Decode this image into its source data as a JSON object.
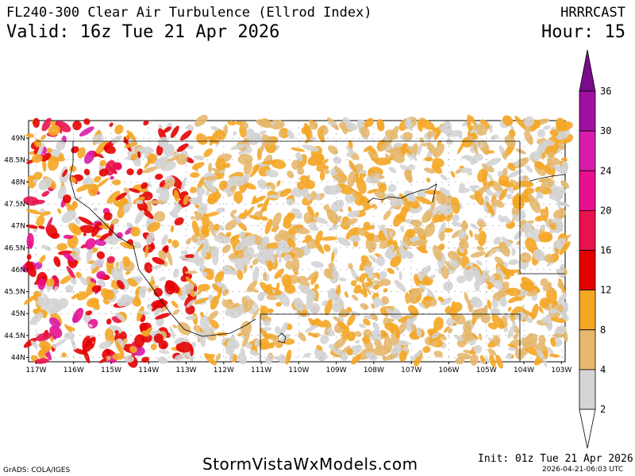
{
  "header": {
    "title": "FL240-300 Clear Air Turbulence (Ellrod Index)",
    "valid": "Valid: 16z Tue 21 Apr 2026",
    "model": "HRRRCAST",
    "hour": "Hour: 15"
  },
  "footer": {
    "credit": "GrADS: COLA/IGES",
    "site": "StormVistaWxModels.com",
    "init": "Init: 01z Tue 21 Apr 2026",
    "generated": "2026-04-21-06:03 UTC"
  },
  "map": {
    "lat_labels": [
      "49N",
      "48.5N",
      "48N",
      "47.5N",
      "47N",
      "46.5N",
      "46N",
      "45.5N",
      "45N",
      "44.5N",
      "44N"
    ],
    "lat_values": [
      49,
      48.5,
      48,
      47.5,
      47,
      46.5,
      46,
      45.5,
      45,
      44.5,
      44
    ],
    "lon_labels": [
      "117W",
      "116W",
      "115W",
      "114W",
      "113W",
      "112W",
      "111W",
      "110W",
      "109W",
      "108W",
      "107W",
      "106W",
      "105W",
      "104W",
      "103W"
    ],
    "lon_values": [
      -117,
      -116,
      -115,
      -114,
      -113,
      -112,
      -111,
      -110,
      -109,
      -108,
      -107,
      -106,
      -105,
      -104,
      -103
    ],
    "lat_range": [
      43.9,
      49.4
    ],
    "lon_range": [
      -117.2,
      -102.9
    ]
  },
  "colorbar": {
    "labels": [
      "2",
      "4",
      "8",
      "12",
      "16",
      "20",
      "24",
      "30",
      "36"
    ],
    "colors": [
      "#d4d4d4",
      "#e6b86e",
      "#f5a623",
      "#e50000",
      "#e8124e",
      "#e8108e",
      "#d81baa",
      "#a10fa2",
      "#7a0c8c"
    ]
  }
}
